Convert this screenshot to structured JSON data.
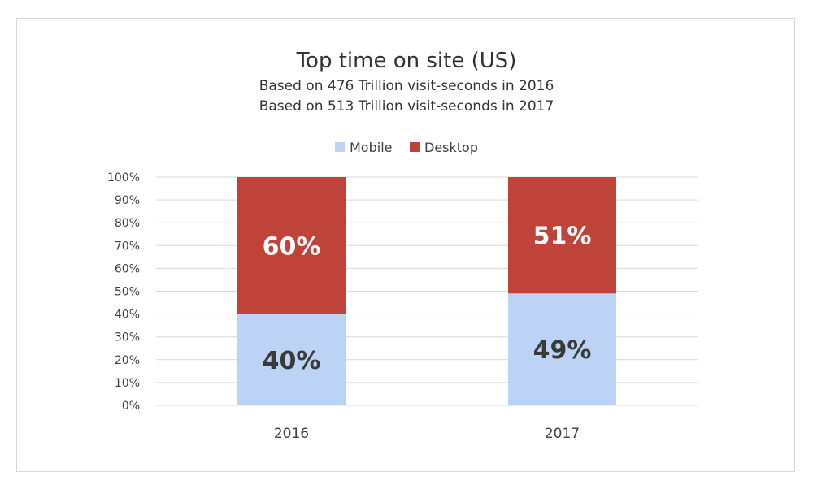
{
  "chart_data": {
    "type": "bar",
    "stacked": true,
    "title": "Top time on site (US)",
    "subtitle_lines": [
      "Based on 476 Trillion visit-seconds in 2016",
      "Based on 513 Trillion visit-seconds in 2017"
    ],
    "categories": [
      "2016",
      "2017"
    ],
    "series": [
      {
        "name": "Mobile",
        "values": [
          40,
          49
        ],
        "labels": [
          "40%",
          "49%"
        ],
        "color": "#bdd3f5",
        "label_color": "#3a3a3a"
      },
      {
        "name": "Desktop",
        "values": [
          60,
          51
        ],
        "labels": [
          "60%",
          "51%"
        ],
        "color": "#c0433a",
        "label_color": "#ffffff"
      }
    ],
    "ylim": [
      0,
      100
    ],
    "y_ticks": [
      "0%",
      "10%",
      "20%",
      "30%",
      "40%",
      "50%",
      "60%",
      "70%",
      "80%",
      "90%",
      "100%"
    ],
    "legend_position": "top",
    "grid": true
  }
}
